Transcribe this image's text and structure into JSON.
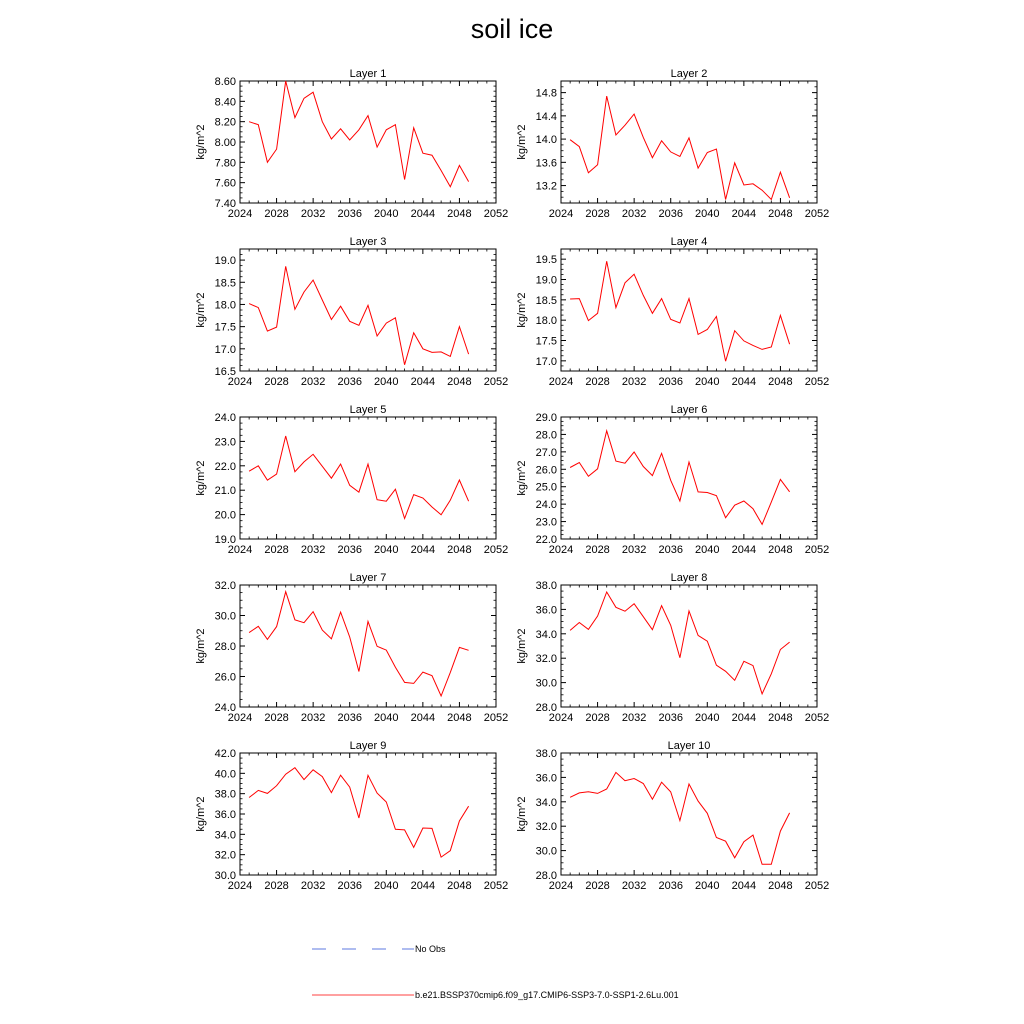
{
  "figure": {
    "title": "soil ice"
  },
  "legend": {
    "entries": [
      {
        "label": "No Obs",
        "color": "#2a4fd6",
        "style": "dashed"
      },
      {
        "label": "b.e21.BSSP370cmip6.f09_g17.CMIP6-SSP3-7.0-SSP1-2.6Lu.001",
        "color": "#ff0000",
        "style": "solid"
      }
    ]
  },
  "colors": {
    "series": "#ff0000"
  },
  "chart_data": [
    {
      "type": "line",
      "title": "Layer 1",
      "ylabel": "kg/m^2",
      "x": [
        2025,
        2026,
        2027,
        2028,
        2029,
        2030,
        2031,
        2032,
        2033,
        2034,
        2035,
        2036,
        2037,
        2038,
        2039,
        2040,
        2041,
        2042,
        2043,
        2044,
        2045,
        2046,
        2047,
        2048,
        2049
      ],
      "series": [
        {
          "values": [
            8.2,
            8.17,
            7.8,
            7.93,
            8.6,
            8.24,
            8.43,
            8.49,
            8.2,
            8.03,
            8.13,
            8.02,
            8.12,
            8.26,
            7.95,
            8.12,
            8.17,
            7.63,
            8.14,
            7.89,
            7.87,
            7.72,
            7.56,
            7.77,
            7.61
          ]
        }
      ],
      "xlim": [
        2024,
        2052
      ],
      "ylim": [
        7.4,
        8.6
      ],
      "xticks": [
        "2024",
        "2028",
        "2032",
        "2036",
        "2040",
        "2044",
        "2048",
        "2052"
      ],
      "yticks": [
        "7.40",
        "7.60",
        "7.80",
        "8.00",
        "8.20",
        "8.40",
        "8.60"
      ]
    },
    {
      "type": "line",
      "title": "Layer 2",
      "ylabel": "kg/m^2",
      "x": [
        2025,
        2026,
        2027,
        2028,
        2029,
        2030,
        2031,
        2032,
        2033,
        2034,
        2035,
        2036,
        2037,
        2038,
        2039,
        2040,
        2041,
        2042,
        2043,
        2044,
        2045,
        2046,
        2047,
        2048,
        2049
      ],
      "series": [
        {
          "values": [
            13.99,
            13.87,
            13.42,
            13.56,
            14.74,
            14.07,
            14.24,
            14.43,
            14.03,
            13.68,
            13.97,
            13.78,
            13.7,
            14.02,
            13.5,
            13.77,
            13.83,
            12.96,
            13.59,
            13.21,
            13.23,
            13.12,
            12.96,
            13.43,
            12.99
          ]
        }
      ],
      "xlim": [
        2024,
        2052
      ],
      "ylim": [
        12.9,
        15.0
      ],
      "xticks": [
        "2024",
        "2028",
        "2032",
        "2036",
        "2040",
        "2044",
        "2048",
        "2052"
      ],
      "yticks": [
        "13.2",
        "13.6",
        "14.0",
        "14.4",
        "14.8"
      ]
    },
    {
      "type": "line",
      "title": "Layer 3",
      "ylabel": "kg/m^2",
      "x": [
        2025,
        2026,
        2027,
        2028,
        2029,
        2030,
        2031,
        2032,
        2033,
        2034,
        2035,
        2036,
        2037,
        2038,
        2039,
        2040,
        2041,
        2042,
        2043,
        2044,
        2045,
        2046,
        2047,
        2048,
        2049
      ],
      "series": [
        {
          "values": [
            18.02,
            17.93,
            17.4,
            17.49,
            18.86,
            17.89,
            18.28,
            18.55,
            18.1,
            17.66,
            17.96,
            17.62,
            17.53,
            17.98,
            17.29,
            17.58,
            17.7,
            16.64,
            17.36,
            17.0,
            16.92,
            16.93,
            16.83,
            17.5,
            16.88
          ]
        }
      ],
      "xlim": [
        2024,
        2052
      ],
      "ylim": [
        16.5,
        19.25
      ],
      "xticks": [
        "2024",
        "2028",
        "2032",
        "2036",
        "2040",
        "2044",
        "2048",
        "2052"
      ],
      "yticks": [
        "16.5",
        "17.0",
        "17.5",
        "18.0",
        "18.5",
        "19.0"
      ]
    },
    {
      "type": "line",
      "title": "Layer 4",
      "ylabel": "kg/m^2",
      "x": [
        2025,
        2026,
        2027,
        2028,
        2029,
        2030,
        2031,
        2032,
        2033,
        2034,
        2035,
        2036,
        2037,
        2038,
        2039,
        2040,
        2041,
        2042,
        2043,
        2044,
        2045,
        2046,
        2047,
        2048,
        2049
      ],
      "series": [
        {
          "values": [
            18.52,
            18.53,
            17.99,
            18.17,
            19.45,
            18.31,
            18.92,
            19.13,
            18.61,
            18.17,
            18.53,
            18.02,
            17.93,
            18.53,
            17.65,
            17.77,
            18.09,
            16.99,
            17.74,
            17.49,
            17.38,
            17.28,
            17.34,
            18.12,
            17.41
          ]
        }
      ],
      "xlim": [
        2024,
        2052
      ],
      "ylim": [
        16.75,
        19.75
      ],
      "xticks": [
        "2024",
        "2028",
        "2032",
        "2036",
        "2040",
        "2044",
        "2048",
        "2052"
      ],
      "yticks": [
        "17.0",
        "17.5",
        "18.0",
        "18.5",
        "19.0",
        "19.5"
      ]
    },
    {
      "type": "line",
      "title": "Layer 5",
      "ylabel": "kg/m^2",
      "x": [
        2025,
        2026,
        2027,
        2028,
        2029,
        2030,
        2031,
        2032,
        2033,
        2034,
        2035,
        2036,
        2037,
        2038,
        2039,
        2040,
        2041,
        2042,
        2043,
        2044,
        2045,
        2046,
        2047,
        2048,
        2049
      ],
      "series": [
        {
          "values": [
            21.78,
            22.0,
            21.41,
            21.66,
            23.22,
            21.76,
            22.16,
            22.47,
            21.98,
            21.49,
            22.07,
            21.2,
            20.92,
            22.07,
            20.61,
            20.55,
            21.04,
            19.84,
            20.82,
            20.68,
            20.31,
            19.99,
            20.59,
            21.42,
            20.55
          ]
        }
      ],
      "xlim": [
        2024,
        2052
      ],
      "ylim": [
        19.0,
        24.0
      ],
      "xticks": [
        "2024",
        "2028",
        "2032",
        "2036",
        "2040",
        "2044",
        "2048",
        "2052"
      ],
      "yticks": [
        "19.0",
        "20.0",
        "21.0",
        "22.0",
        "23.0",
        "24.0"
      ]
    },
    {
      "type": "line",
      "title": "Layer 6",
      "ylabel": "kg/m^2",
      "x": [
        2025,
        2026,
        2027,
        2028,
        2029,
        2030,
        2031,
        2032,
        2033,
        2034,
        2035,
        2036,
        2037,
        2038,
        2039,
        2040,
        2041,
        2042,
        2043,
        2044,
        2045,
        2046,
        2047,
        2048,
        2049
      ],
      "series": [
        {
          "values": [
            26.1,
            26.39,
            25.6,
            26.03,
            28.21,
            26.47,
            26.35,
            26.99,
            26.16,
            25.64,
            26.91,
            25.37,
            24.18,
            26.42,
            24.7,
            24.67,
            24.49,
            23.22,
            23.94,
            24.18,
            23.74,
            22.84,
            24.12,
            25.42,
            24.71
          ]
        }
      ],
      "xlim": [
        2024,
        2052
      ],
      "ylim": [
        22.0,
        29.0
      ],
      "xticks": [
        "2024",
        "2028",
        "2032",
        "2036",
        "2040",
        "2044",
        "2048",
        "2052"
      ],
      "yticks": [
        "22.0",
        "23.0",
        "24.0",
        "25.0",
        "26.0",
        "27.0",
        "28.0",
        "29.0"
      ]
    },
    {
      "type": "line",
      "title": "Layer 7",
      "ylabel": "kg/m^2",
      "x": [
        2025,
        2026,
        2027,
        2028,
        2029,
        2030,
        2031,
        2032,
        2033,
        2034,
        2035,
        2036,
        2037,
        2038,
        2039,
        2040,
        2041,
        2042,
        2043,
        2044,
        2045,
        2046,
        2047,
        2048,
        2049
      ],
      "series": [
        {
          "values": [
            28.88,
            29.29,
            28.43,
            29.27,
            31.56,
            29.72,
            29.53,
            30.25,
            29.04,
            28.47,
            30.22,
            28.59,
            26.33,
            29.61,
            27.98,
            27.73,
            26.61,
            25.61,
            25.55,
            26.29,
            26.05,
            24.72,
            26.27,
            27.91,
            27.72
          ]
        }
      ],
      "xlim": [
        2024,
        2052
      ],
      "ylim": [
        24.0,
        32.0
      ],
      "xticks": [
        "2024",
        "2028",
        "2032",
        "2036",
        "2040",
        "2044",
        "2048",
        "2052"
      ],
      "yticks": [
        "24.0",
        "26.0",
        "28.0",
        "30.0",
        "32.0"
      ]
    },
    {
      "type": "line",
      "title": "Layer 8",
      "ylabel": "kg/m^2",
      "x": [
        2025,
        2026,
        2027,
        2028,
        2029,
        2030,
        2031,
        2032,
        2033,
        2034,
        2035,
        2036,
        2037,
        2038,
        2039,
        2040,
        2041,
        2042,
        2043,
        2044,
        2045,
        2046,
        2047,
        2048,
        2049
      ],
      "series": [
        {
          "values": [
            34.28,
            34.93,
            34.36,
            35.46,
            37.43,
            36.17,
            35.85,
            36.47,
            35.4,
            34.34,
            36.3,
            34.7,
            32.03,
            35.87,
            33.87,
            33.39,
            31.43,
            30.93,
            30.19,
            31.75,
            31.39,
            29.07,
            30.72,
            32.71,
            33.32
          ]
        }
      ],
      "xlim": [
        2024,
        2052
      ],
      "ylim": [
        28.0,
        38.0
      ],
      "xticks": [
        "2024",
        "2028",
        "2032",
        "2036",
        "2040",
        "2044",
        "2048",
        "2052"
      ],
      "yticks": [
        "28.0",
        "30.0",
        "32.0",
        "34.0",
        "36.0",
        "38.0"
      ]
    },
    {
      "type": "line",
      "title": "Layer 9",
      "ylabel": "kg/m^2",
      "x": [
        2025,
        2026,
        2027,
        2028,
        2029,
        2030,
        2031,
        2032,
        2033,
        2034,
        2035,
        2036,
        2037,
        2038,
        2039,
        2040,
        2041,
        2042,
        2043,
        2044,
        2045,
        2046,
        2047,
        2048,
        2049
      ],
      "series": [
        {
          "values": [
            37.62,
            38.32,
            38.03,
            38.78,
            39.91,
            40.55,
            39.38,
            40.35,
            39.68,
            38.1,
            39.82,
            38.65,
            35.61,
            39.81,
            38.06,
            37.18,
            34.5,
            34.44,
            32.71,
            34.62,
            34.58,
            31.76,
            32.39,
            35.31,
            36.77
          ]
        }
      ],
      "xlim": [
        2024,
        2052
      ],
      "ylim": [
        30.0,
        42.0
      ],
      "xticks": [
        "2024",
        "2028",
        "2032",
        "2036",
        "2040",
        "2044",
        "2048",
        "2052"
      ],
      "yticks": [
        "30.0",
        "32.0",
        "34.0",
        "36.0",
        "38.0",
        "40.0",
        "42.0"
      ]
    },
    {
      "type": "line",
      "title": "Layer 10",
      "ylabel": "kg/m^2",
      "x": [
        2025,
        2026,
        2027,
        2028,
        2029,
        2030,
        2031,
        2032,
        2033,
        2034,
        2035,
        2036,
        2037,
        2038,
        2039,
        2040,
        2041,
        2042,
        2043,
        2044,
        2045,
        2046,
        2047,
        2048,
        2049
      ],
      "series": [
        {
          "values": [
            34.37,
            34.73,
            34.83,
            34.69,
            35.05,
            36.41,
            35.73,
            35.91,
            35.5,
            34.21,
            35.61,
            34.81,
            32.46,
            35.46,
            34.06,
            33.06,
            31.07,
            30.77,
            29.41,
            30.73,
            31.27,
            28.88,
            28.88,
            31.6,
            33.09
          ]
        }
      ],
      "xlim": [
        2024,
        2052
      ],
      "ylim": [
        28.0,
        38.0
      ],
      "xticks": [
        "2024",
        "2028",
        "2032",
        "2036",
        "2040",
        "2044",
        "2048",
        "2052"
      ],
      "yticks": [
        "28.0",
        "30.0",
        "32.0",
        "34.0",
        "36.0",
        "38.0"
      ]
    }
  ]
}
